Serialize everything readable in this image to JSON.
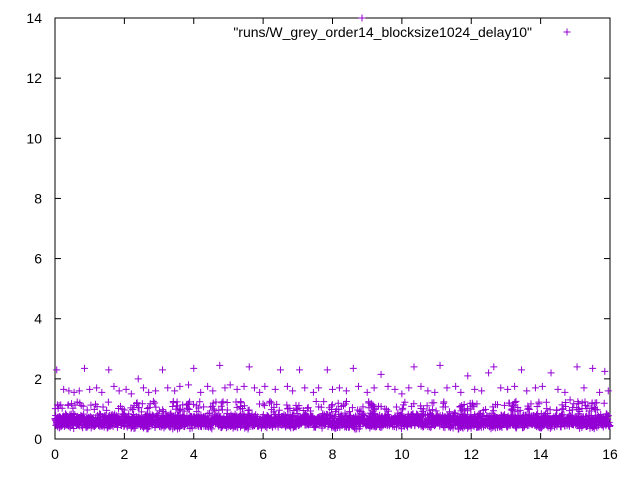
{
  "chart_data": {
    "type": "scatter",
    "title": "",
    "xlabel": "",
    "ylabel": "",
    "xlim": [
      0,
      16
    ],
    "ylim": [
      0,
      14
    ],
    "x_ticks": [
      "0",
      "2",
      "4",
      "6",
      "8",
      "10",
      "12",
      "14",
      "16"
    ],
    "y_ticks": [
      "0",
      "2",
      "4",
      "6",
      "8",
      "10",
      "12",
      "14"
    ],
    "grid": false,
    "legend_position": "top-right",
    "marker": "+",
    "series": [
      {
        "name": "\"runs/W_grey_order14_blocksize1024_delay10\"",
        "color": "#9400d3",
        "typical_band": [
          0.2,
          1.0
        ],
        "outliers": [
          [
            0.05,
            2.3
          ],
          [
            0.25,
            1.65
          ],
          [
            0.4,
            1.6
          ],
          [
            0.55,
            1.55
          ],
          [
            0.7,
            1.6
          ],
          [
            0.85,
            2.35
          ],
          [
            1.0,
            1.65
          ],
          [
            1.2,
            1.7
          ],
          [
            1.35,
            1.55
          ],
          [
            1.55,
            2.3
          ],
          [
            1.7,
            1.75
          ],
          [
            1.85,
            1.6
          ],
          [
            2.05,
            1.65
          ],
          [
            2.2,
            1.5
          ],
          [
            2.4,
            2.0
          ],
          [
            2.55,
            1.7
          ],
          [
            2.7,
            1.55
          ],
          [
            2.9,
            1.6
          ],
          [
            3.1,
            2.3
          ],
          [
            3.25,
            1.7
          ],
          [
            3.45,
            1.6
          ],
          [
            3.6,
            1.75
          ],
          [
            3.85,
            1.8
          ],
          [
            4.0,
            2.35
          ],
          [
            4.2,
            1.55
          ],
          [
            4.4,
            1.75
          ],
          [
            4.55,
            1.6
          ],
          [
            4.75,
            2.45
          ],
          [
            4.9,
            1.7
          ],
          [
            5.05,
            1.8
          ],
          [
            5.25,
            1.65
          ],
          [
            5.45,
            1.75
          ],
          [
            5.6,
            2.4
          ],
          [
            5.75,
            1.7
          ],
          [
            5.9,
            1.55
          ],
          [
            6.05,
            1.75
          ],
          [
            6.2,
            1.25
          ],
          [
            6.35,
            1.65
          ],
          [
            6.5,
            2.3
          ],
          [
            6.7,
            1.75
          ],
          [
            6.85,
            1.6
          ],
          [
            7.05,
            2.3
          ],
          [
            7.2,
            1.7
          ],
          [
            7.45,
            1.55
          ],
          [
            7.6,
            1.7
          ],
          [
            7.85,
            2.3
          ],
          [
            8.0,
            1.65
          ],
          [
            8.2,
            1.7
          ],
          [
            8.4,
            1.6
          ],
          [
            8.6,
            2.35
          ],
          [
            8.75,
            1.75
          ],
          [
            9.0,
            1.55
          ],
          [
            9.2,
            1.7
          ],
          [
            9.4,
            2.15
          ],
          [
            9.6,
            1.75
          ],
          [
            9.8,
            1.65
          ],
          [
            10.0,
            1.5
          ],
          [
            10.2,
            1.7
          ],
          [
            10.35,
            2.4
          ],
          [
            10.55,
            1.75
          ],
          [
            10.75,
            1.6
          ],
          [
            10.95,
            1.55
          ],
          [
            11.1,
            2.45
          ],
          [
            11.3,
            1.7
          ],
          [
            11.55,
            1.75
          ],
          [
            11.7,
            1.55
          ],
          [
            11.9,
            2.1
          ],
          [
            12.1,
            1.65
          ],
          [
            12.3,
            1.6
          ],
          [
            12.5,
            2.2
          ],
          [
            12.65,
            2.4
          ],
          [
            12.85,
            1.7
          ],
          [
            13.05,
            1.65
          ],
          [
            13.25,
            1.75
          ],
          [
            13.45,
            2.3
          ],
          [
            13.6,
            1.6
          ],
          [
            13.85,
            1.7
          ],
          [
            14.05,
            1.75
          ],
          [
            14.3,
            2.2
          ],
          [
            14.5,
            1.65
          ],
          [
            14.7,
            1.55
          ],
          [
            14.85,
            1.3
          ],
          [
            15.05,
            2.4
          ],
          [
            15.25,
            1.7
          ],
          [
            15.5,
            2.35
          ],
          [
            15.7,
            1.55
          ],
          [
            15.85,
            2.25
          ],
          [
            15.95,
            1.6
          ],
          [
            8.85,
            14.0
          ]
        ]
      }
    ]
  }
}
